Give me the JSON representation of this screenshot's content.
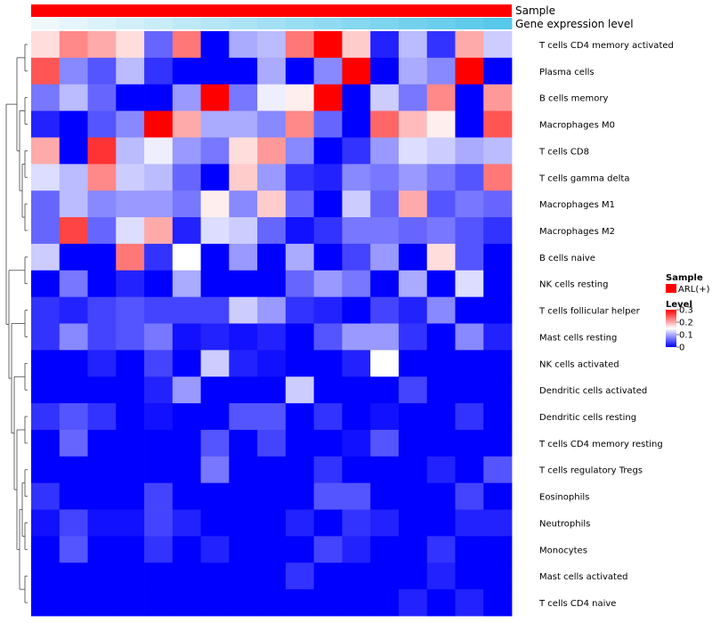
{
  "chart_data": {
    "type": "heatmap",
    "rows": [
      "T cells CD4 memory activated",
      "Plasma cells",
      "B cells memory",
      "Macrophages M0",
      "T cells CD8",
      "T cells gamma delta",
      "Macrophages M1",
      "Macrophages M2",
      "B cells naive",
      "NK cells resting",
      "T cells follicular helper",
      "Mast cells resting",
      "NK cells activated",
      "Dendritic cells activated",
      "Dendritic cells resting",
      "T cells CD4 memory resting",
      "T cells regulatory  Tregs",
      "Eosinophils",
      "Neutrophils",
      "Monocytes",
      "Mast cells activated",
      "T cells CD4 naive"
    ],
    "values": [
      [
        0.17,
        0.22,
        0.2,
        0.17,
        0.06,
        0.23,
        0.0,
        0.1,
        0.11,
        0.23,
        0.3,
        0.18,
        0.02,
        0.11,
        0.03,
        0.2,
        0.12
      ],
      [
        0.25,
        0.08,
        0.05,
        0.11,
        0.03,
        0.0,
        0.0,
        0.0,
        0.1,
        0.0,
        0.08,
        0.3,
        0.0,
        0.1,
        0.08,
        0.3,
        0.0
      ],
      [
        0.07,
        0.11,
        0.06,
        0.0,
        0.0,
        0.09,
        0.3,
        0.07,
        0.14,
        0.16,
        0.3,
        0.0,
        0.12,
        0.07,
        0.22,
        0.0,
        0.21
      ],
      [
        0.02,
        0.0,
        0.05,
        0.08,
        0.3,
        0.2,
        0.1,
        0.1,
        0.08,
        0.22,
        0.06,
        0.0,
        0.24,
        0.19,
        0.16,
        0.0,
        0.25
      ],
      [
        0.2,
        0.0,
        0.27,
        0.11,
        0.14,
        0.09,
        0.07,
        0.17,
        0.21,
        0.08,
        0.0,
        0.03,
        0.09,
        0.13,
        0.12,
        0.1,
        0.11
      ],
      [
        0.13,
        0.11,
        0.22,
        0.12,
        0.11,
        0.06,
        0.0,
        0.18,
        0.09,
        0.03,
        0.02,
        0.08,
        0.07,
        0.09,
        0.07,
        0.05,
        0.23
      ],
      [
        0.06,
        0.11,
        0.08,
        0.09,
        0.09,
        0.07,
        0.16,
        0.08,
        0.18,
        0.06,
        0.0,
        0.12,
        0.06,
        0.2,
        0.05,
        0.07,
        0.06
      ],
      [
        0.06,
        0.26,
        0.06,
        0.13,
        0.2,
        0.02,
        0.13,
        0.12,
        0.06,
        0.01,
        0.03,
        0.07,
        0.07,
        0.06,
        0.07,
        0.05,
        0.03
      ],
      [
        0.12,
        0.0,
        0.0,
        0.23,
        0.03,
        0.15,
        0.0,
        0.09,
        0.0,
        0.1,
        0.0,
        0.04,
        0.09,
        0.0,
        0.17,
        0.05,
        0.0
      ],
      [
        0.0,
        0.07,
        0.0,
        0.02,
        0.0,
        0.1,
        0.0,
        0.0,
        0.0,
        0.06,
        0.09,
        0.07,
        0.0,
        0.1,
        0.0,
        0.13,
        0.0
      ],
      [
        0.03,
        0.02,
        0.04,
        0.05,
        0.04,
        0.04,
        0.04,
        0.12,
        0.09,
        0.03,
        0.02,
        0.0,
        0.04,
        0.02,
        0.08,
        0.0,
        0.0
      ],
      [
        0.03,
        0.08,
        0.04,
        0.05,
        0.07,
        0.01,
        0.02,
        0.01,
        0.02,
        0.0,
        0.05,
        0.09,
        0.09,
        0.03,
        0.0,
        0.08,
        0.02
      ],
      [
        0.0,
        0.0,
        0.02,
        0.0,
        0.04,
        0.0,
        0.12,
        0.02,
        0.01,
        0.0,
        0.0,
        0.02,
        0.15,
        0.0,
        0.0,
        0.0,
        0.0
      ],
      [
        0.0,
        0.0,
        0.0,
        0.0,
        0.02,
        0.09,
        0.0,
        0.0,
        0.0,
        0.12,
        0.0,
        0.0,
        0.0,
        0.04,
        0.0,
        0.0,
        0.0
      ],
      [
        0.03,
        0.05,
        0.03,
        0.0,
        0.01,
        0.0,
        0.0,
        0.05,
        0.05,
        0.0,
        0.03,
        0.0,
        0.01,
        0.0,
        0.0,
        0.03,
        0.0
      ],
      [
        0.0,
        0.06,
        0.0,
        0.0,
        0.0,
        0.0,
        0.05,
        0.0,
        0.04,
        0.0,
        0.0,
        0.01,
        0.05,
        0.0,
        0.0,
        0.0,
        0.0
      ],
      [
        0.0,
        0.0,
        0.0,
        0.0,
        0.0,
        0.0,
        0.07,
        0.0,
        0.0,
        0.0,
        0.03,
        0.0,
        0.0,
        0.0,
        0.02,
        0.0,
        0.05
      ],
      [
        0.03,
        0.0,
        0.0,
        0.0,
        0.04,
        0.0,
        0.0,
        0.0,
        0.0,
        0.0,
        0.05,
        0.05,
        0.0,
        0.0,
        0.0,
        0.04,
        0.0
      ],
      [
        0.01,
        0.04,
        0.01,
        0.01,
        0.04,
        0.02,
        0.0,
        0.0,
        0.0,
        0.02,
        0.0,
        0.03,
        0.02,
        0.0,
        0.0,
        0.02,
        0.02
      ],
      [
        0.0,
        0.05,
        0.0,
        0.0,
        0.03,
        0.0,
        0.02,
        0.0,
        0.0,
        0.0,
        0.04,
        0.02,
        0.0,
        0.0,
        0.03,
        0.0,
        0.0
      ],
      [
        0.0,
        0.0,
        0.0,
        0.0,
        0.0,
        0.0,
        0.0,
        0.0,
        0.0,
        0.03,
        0.0,
        0.0,
        0.0,
        0.0,
        0.02,
        0.0,
        0.0
      ],
      [
        0.0,
        0.0,
        0.0,
        0.0,
        0.0,
        0.0,
        0.0,
        0.0,
        0.0,
        0.0,
        0.0,
        0.0,
        0.0,
        0.02,
        0.0,
        0.02,
        0.0
      ]
    ],
    "annotations": [
      {
        "label": "Sample",
        "colors": "#ff0000"
      },
      {
        "label": "Gene expression level",
        "gradient": [
          "#eef8fc",
          "#57c8ea"
        ]
      }
    ],
    "legends": {
      "sample": {
        "title": "Sample",
        "items": [
          {
            "label": "ARL(+)",
            "color": "#ff0000"
          }
        ]
      },
      "level": {
        "title": "Level",
        "ticks": [
          "0.3",
          "0.2",
          "0.1",
          "0"
        ],
        "tick_values": [
          0.3,
          0.2,
          0.1,
          0
        ]
      }
    },
    "color_scale": {
      "low": "#0000ff",
      "mid": "#ffffff",
      "high": "#ff0000",
      "min": 0,
      "mid_value": 0.15,
      "max": 0.3
    },
    "dendrogram": "left, rows clustered"
  }
}
